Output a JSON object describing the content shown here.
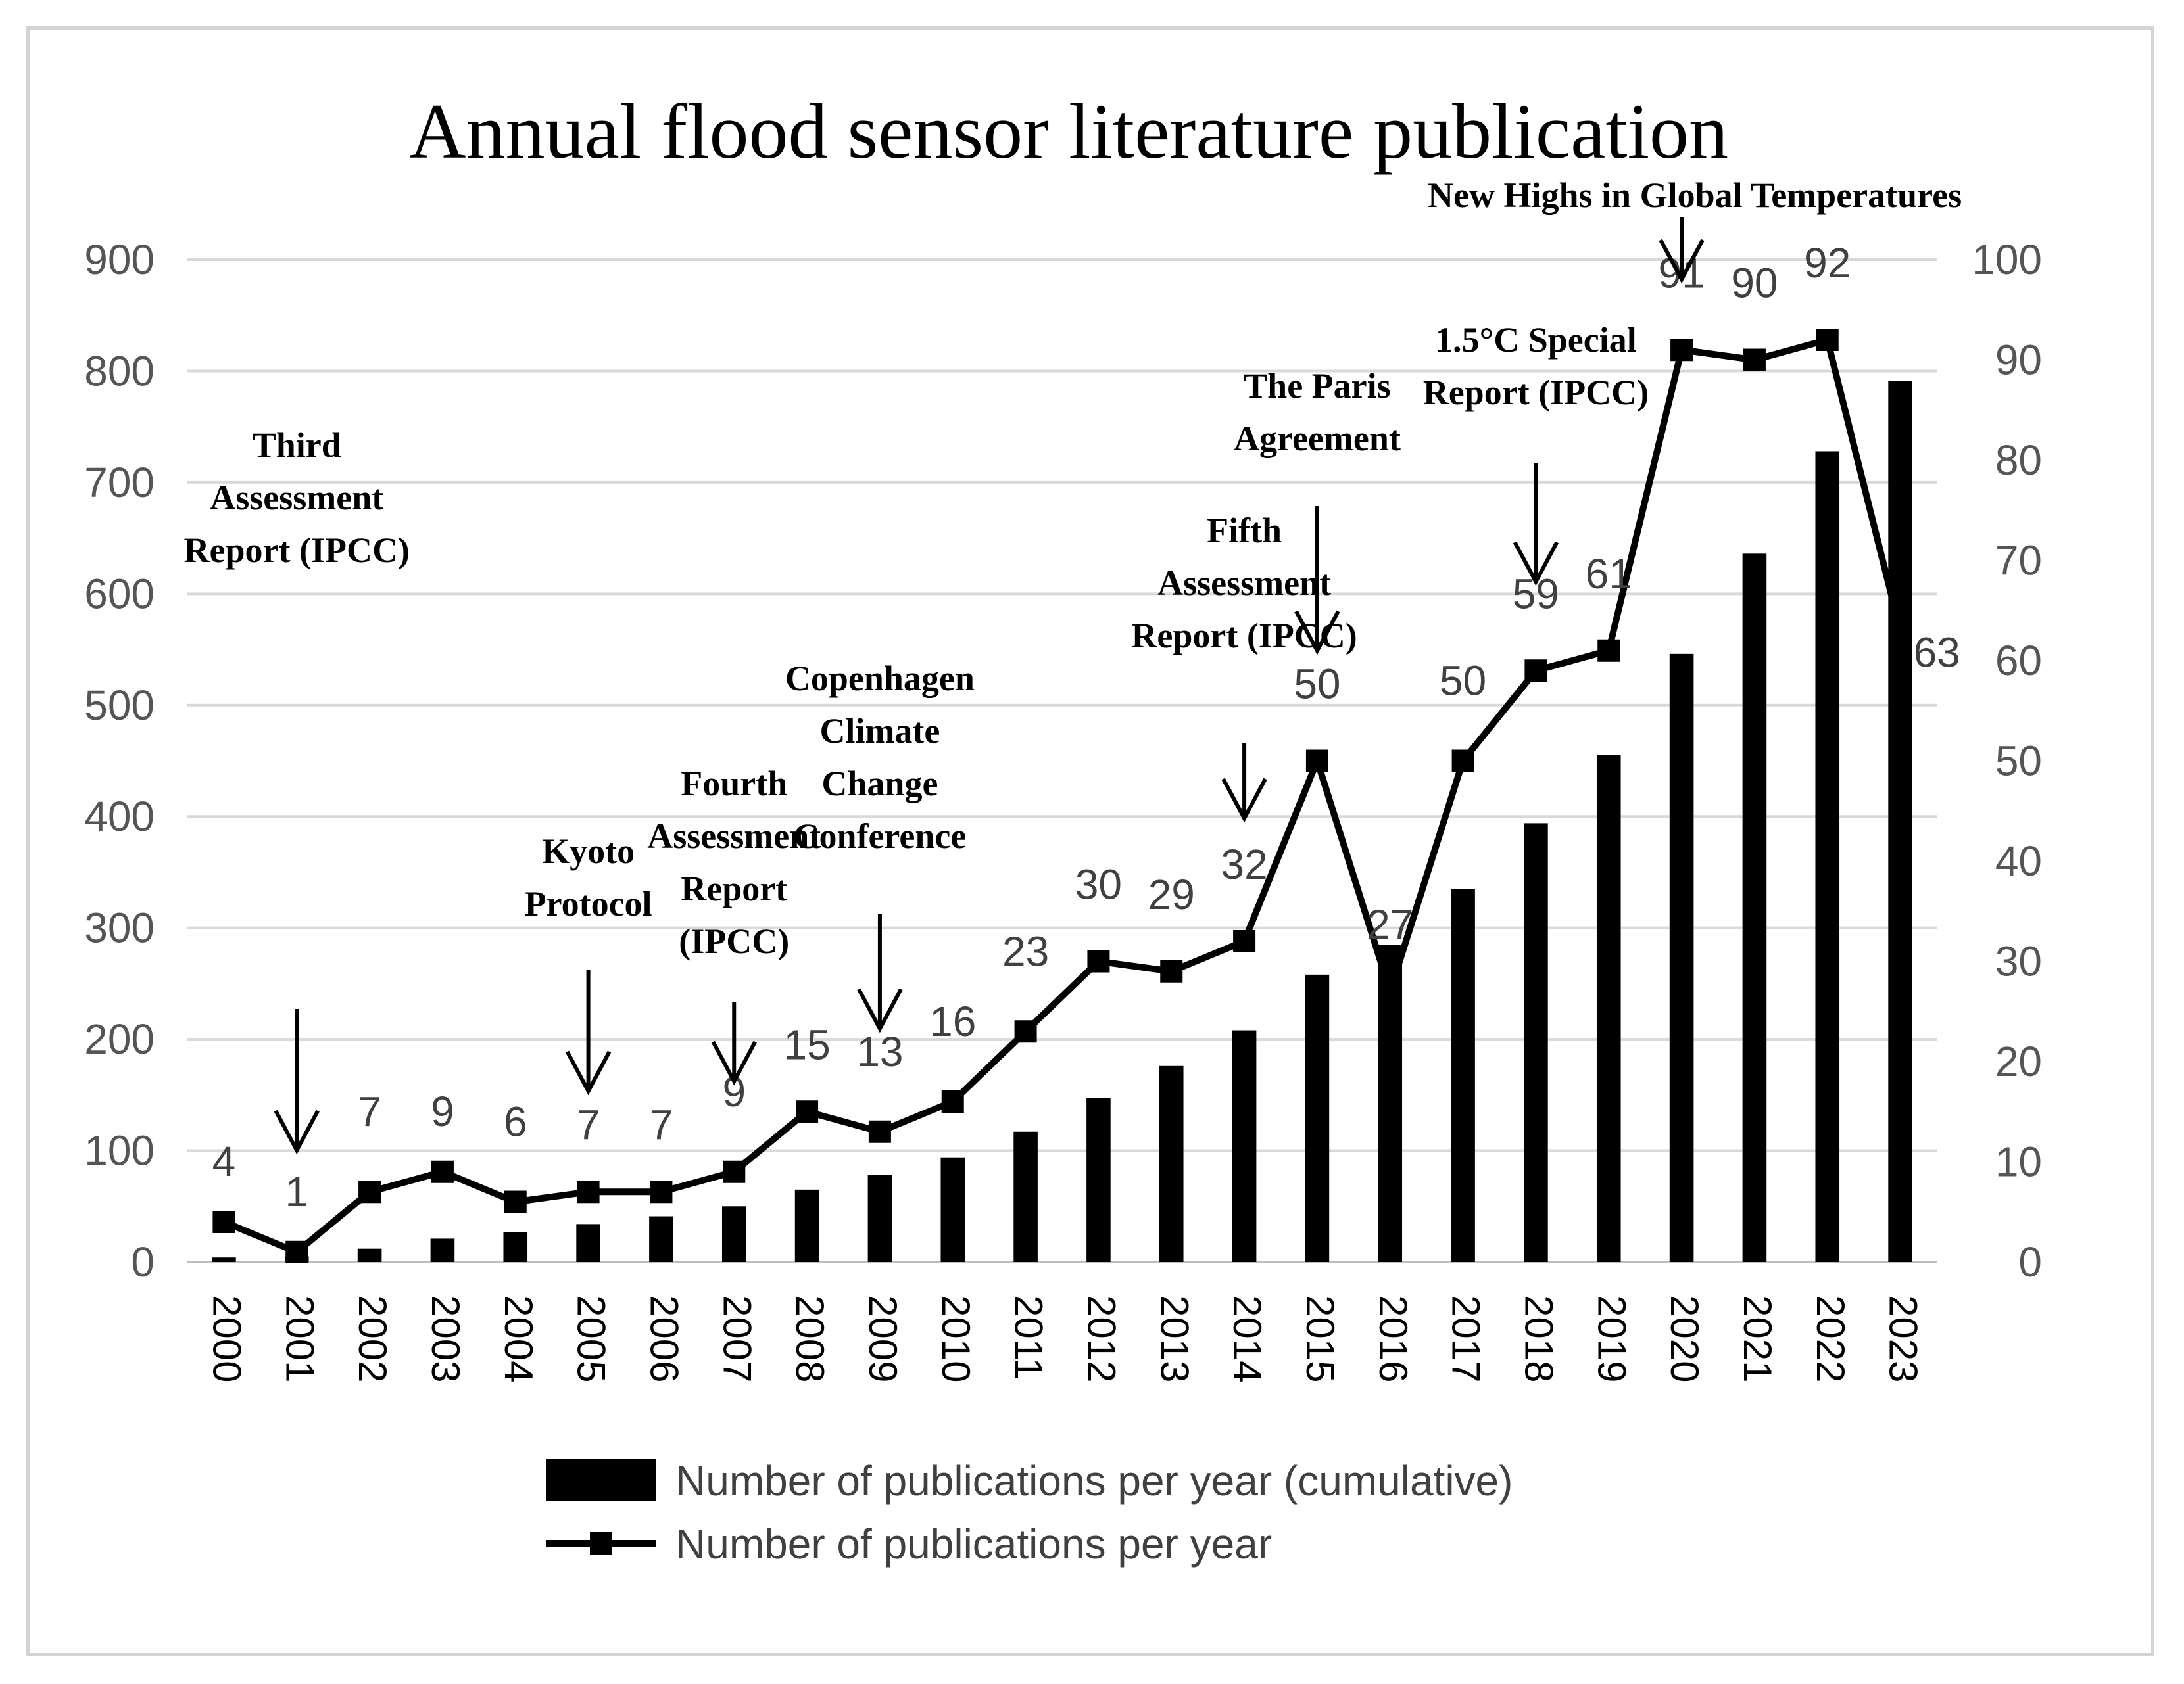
{
  "chart_data": {
    "type": "bar+line",
    "title": "Annual flood sensor literature publication",
    "categories": [
      "2000",
      "2001",
      "2002",
      "2003",
      "2004",
      "2005",
      "2006",
      "2007",
      "2008",
      "2009",
      "2010",
      "2011",
      "2012",
      "2013",
      "2014",
      "2015",
      "2016",
      "2017",
      "2018",
      "2019",
      "2020",
      "2021",
      "2022",
      "2023"
    ],
    "series": [
      {
        "name": "Number of publications per year (cumulative)",
        "type": "bar",
        "axis": "left",
        "color": "#000000",
        "values": [
          4,
          5,
          12,
          21,
          27,
          34,
          41,
          50,
          65,
          78,
          94,
          117,
          147,
          176,
          208,
          258,
          285,
          335,
          394,
          455,
          546,
          636,
          728,
          791
        ]
      },
      {
        "name": "Number of publications per year",
        "type": "line",
        "axis": "right",
        "color": "#000000",
        "values": [
          4,
          1,
          7,
          9,
          6,
          7,
          7,
          9,
          15,
          13,
          16,
          23,
          30,
          29,
          32,
          50,
          27,
          50,
          59,
          61,
          91,
          90,
          92,
          63
        ],
        "labels": [
          "4",
          "1",
          "7",
          "9",
          "6",
          "7",
          "7",
          "9",
          "15",
          "13",
          "16",
          "23",
          "30",
          "29",
          "32",
          "50",
          "27",
          "50",
          "59",
          "61",
          "91",
          "90",
          "92",
          "63"
        ]
      }
    ],
    "left_axis": {
      "min": 0,
      "max": 900,
      "ticks": [
        "0",
        "100",
        "200",
        "300",
        "400",
        "500",
        "600",
        "700",
        "800",
        "900"
      ]
    },
    "right_axis": {
      "min": 0,
      "max": 100,
      "ticks": [
        "0",
        "10",
        "20",
        "30",
        "40",
        "50",
        "60",
        "70",
        "80",
        "90",
        "100"
      ]
    },
    "grid": true,
    "legend": "bottom-center",
    "annotations": [
      {
        "year": "2001",
        "lines": [
          "Third",
          "Assessment",
          "Report (IPCC)"
        ]
      },
      {
        "year": "2005",
        "lines": [
          "Kyoto",
          "Protocol"
        ]
      },
      {
        "year": "2007",
        "lines": [
          "Fourth",
          "Assessment",
          "Report",
          "(IPCC)"
        ]
      },
      {
        "year": "2009",
        "lines": [
          "Copenhagen",
          "Climate",
          "Change",
          "Conference"
        ]
      },
      {
        "year": "2014",
        "lines": [
          "Fifth",
          "Assessment",
          "Report (IPCC)"
        ]
      },
      {
        "year": "2015",
        "lines": [
          "The Paris",
          "Agreement"
        ]
      },
      {
        "year": "2018",
        "lines": [
          "1.5°C Special",
          "Report (IPCC)"
        ]
      },
      {
        "year": "2020",
        "lines": [
          "New Highs in Global Temperatures"
        ]
      }
    ]
  }
}
